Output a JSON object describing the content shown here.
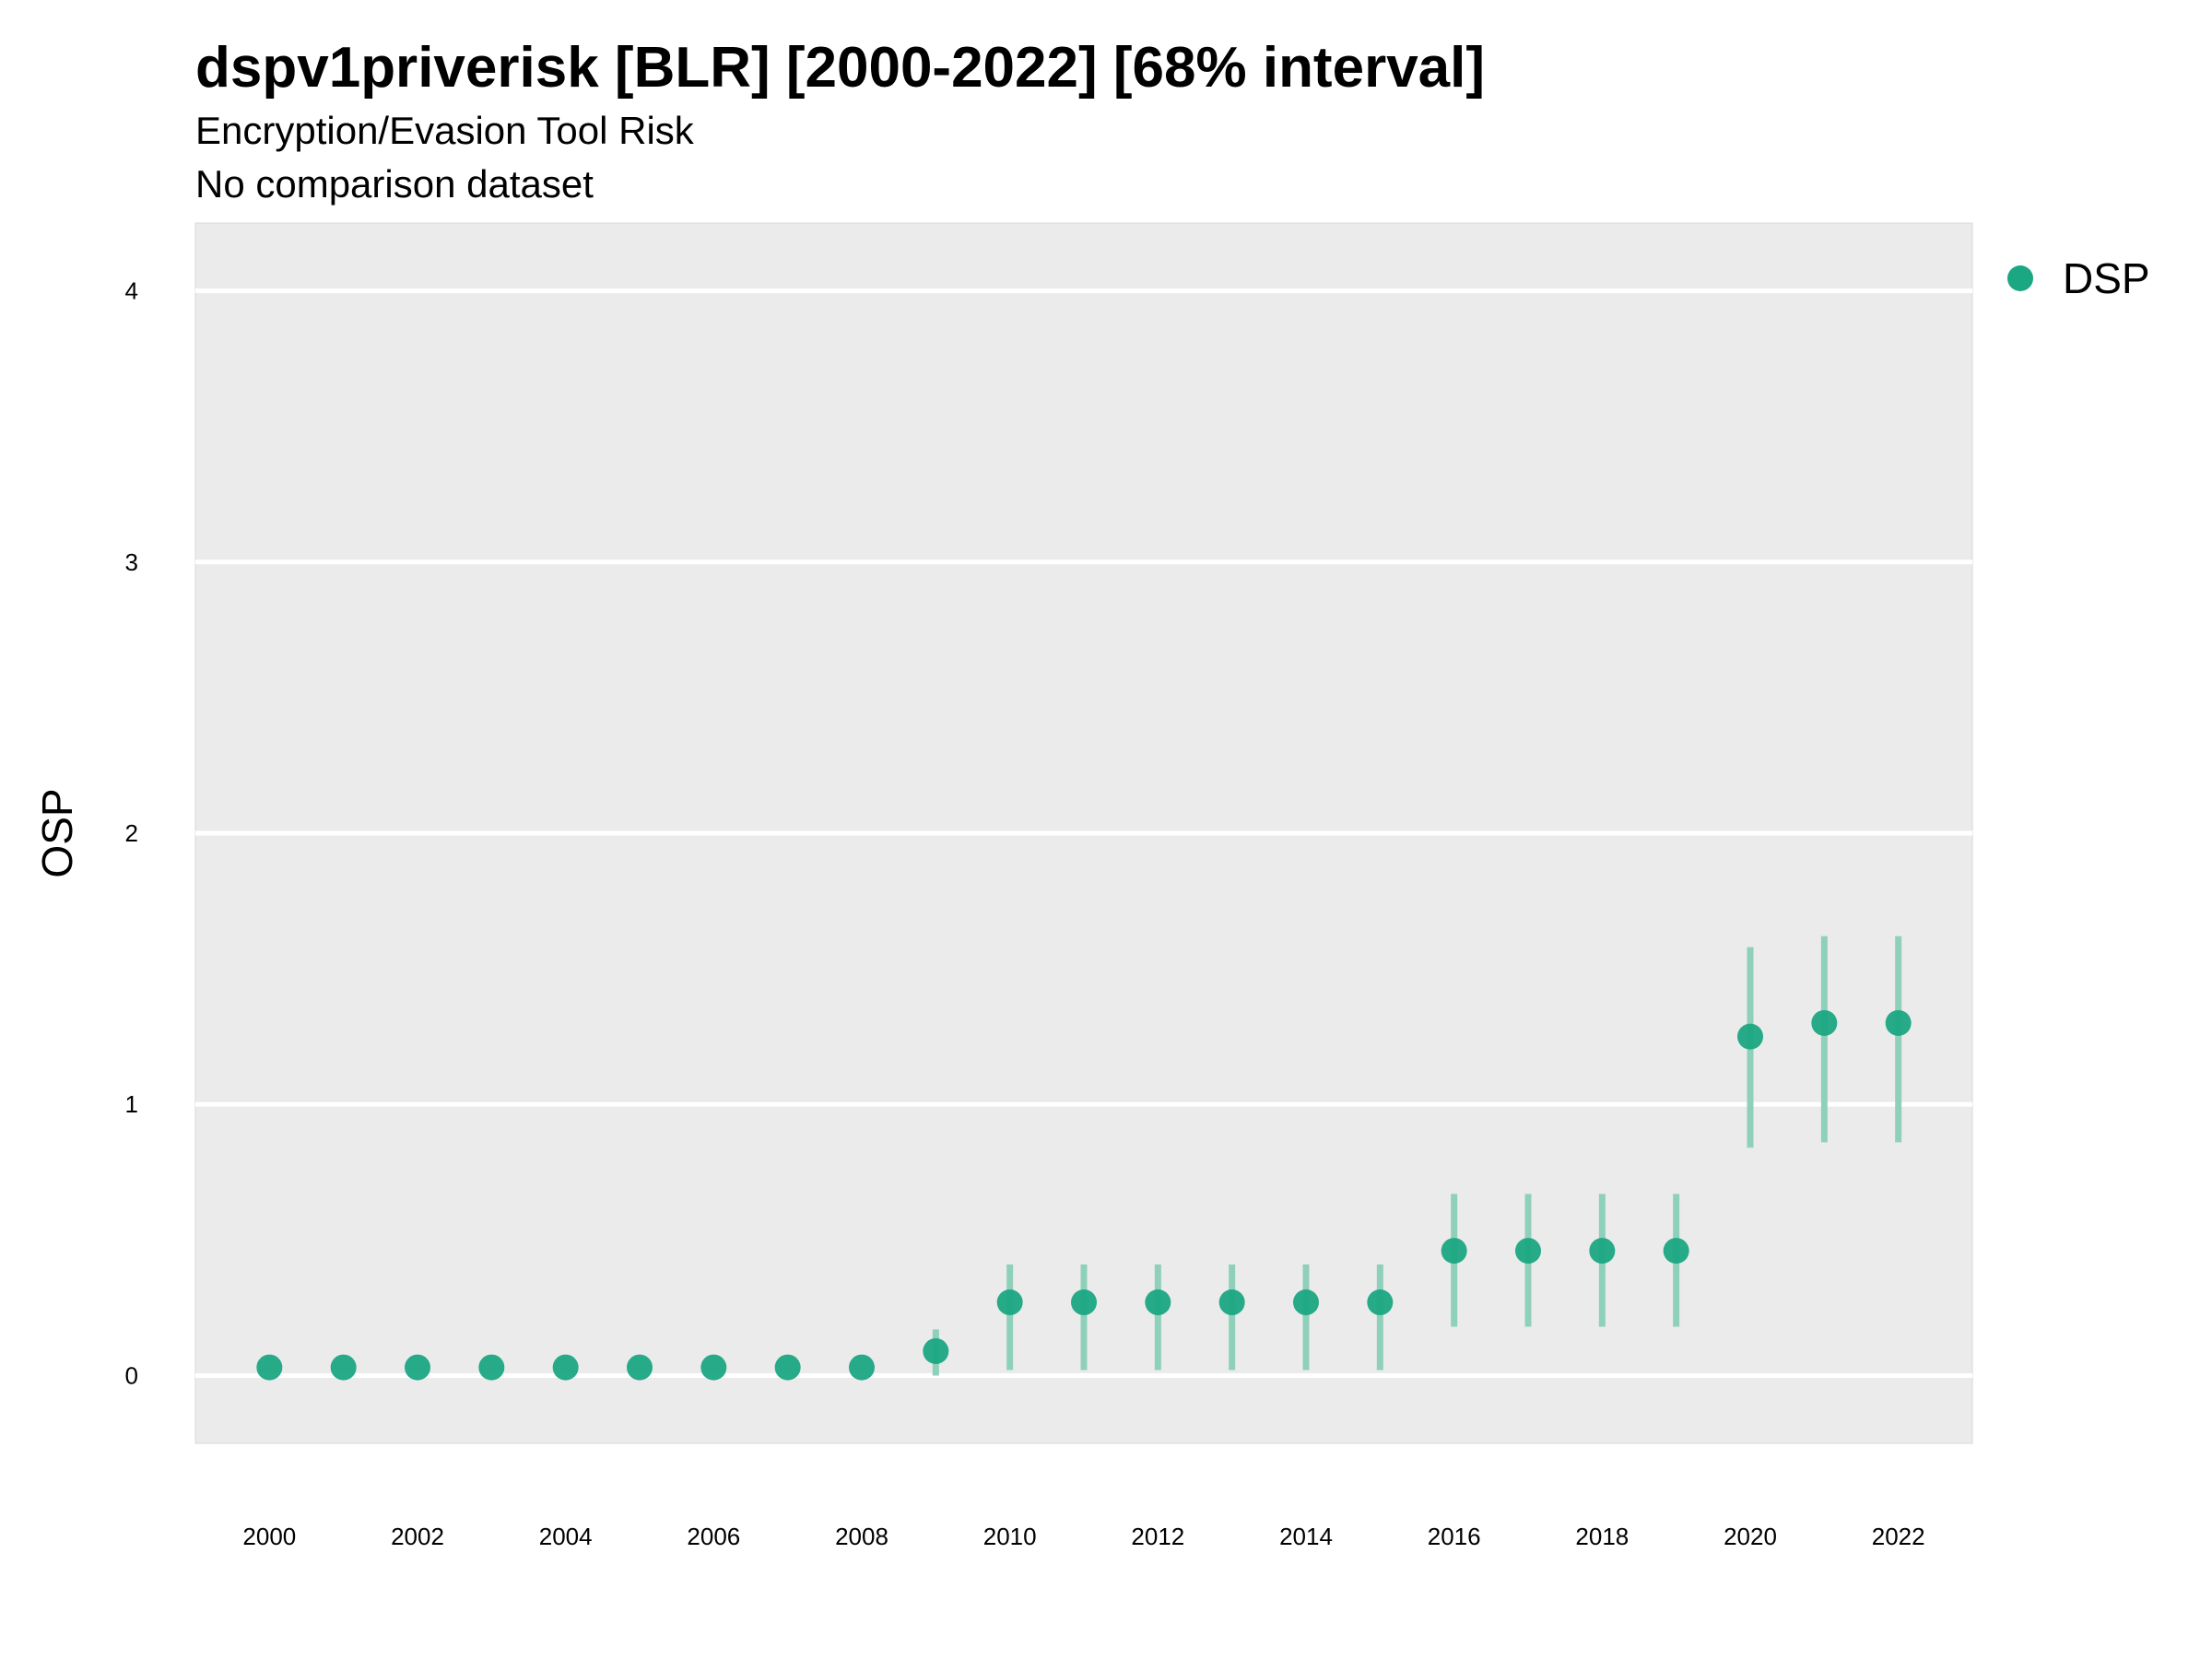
{
  "chart_data": {
    "type": "scatter",
    "title": "dspv1priverisk [BLR] [2000-2022] [68% interval]",
    "subtitle": "Encryption/Evasion Tool Risk",
    "subtitle2": "No comparison dataset",
    "xlabel": "",
    "ylabel": "OSP",
    "xlim": [
      1999,
      2023
    ],
    "ylim": [
      -0.25,
      4.25
    ],
    "x_ticks": [
      2000,
      2002,
      2004,
      2006,
      2008,
      2010,
      2012,
      2014,
      2016,
      2018,
      2020,
      2022
    ],
    "y_ticks": [
      0,
      1,
      2,
      3,
      4
    ],
    "grid": true,
    "legend_position": "top-right",
    "colors": {
      "point": "#1ba782",
      "interval": "#8fd0bb",
      "panel": "#ebebeb",
      "grid": "#ffffff"
    },
    "series": [
      {
        "name": "DSP",
        "x": [
          2000,
          2001,
          2002,
          2003,
          2004,
          2005,
          2006,
          2007,
          2008,
          2009,
          2010,
          2011,
          2012,
          2013,
          2014,
          2015,
          2016,
          2017,
          2018,
          2019,
          2020,
          2021,
          2022
        ],
        "y": [
          0.03,
          0.03,
          0.03,
          0.03,
          0.03,
          0.03,
          0.03,
          0.03,
          0.03,
          0.09,
          0.27,
          0.27,
          0.27,
          0.27,
          0.27,
          0.27,
          0.46,
          0.46,
          0.46,
          0.46,
          1.25,
          1.3,
          1.3
        ],
        "lower": [
          null,
          null,
          null,
          null,
          null,
          null,
          null,
          null,
          null,
          0.0,
          0.02,
          0.02,
          0.02,
          0.02,
          0.02,
          0.02,
          0.18,
          0.18,
          0.18,
          0.18,
          0.84,
          0.86,
          0.86
        ],
        "upper": [
          null,
          null,
          null,
          null,
          null,
          null,
          null,
          null,
          null,
          0.17,
          0.41,
          0.41,
          0.41,
          0.41,
          0.41,
          0.41,
          0.67,
          0.67,
          0.67,
          0.67,
          1.58,
          1.62,
          1.62
        ]
      }
    ]
  }
}
